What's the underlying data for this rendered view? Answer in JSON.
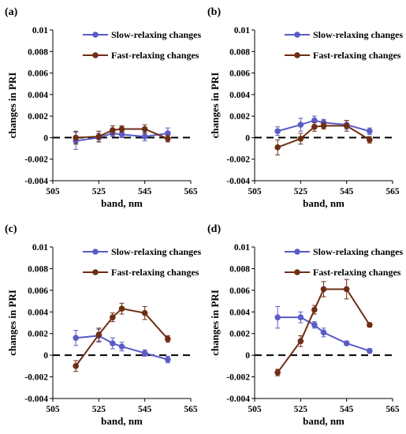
{
  "chart_data": [
    {
      "panel": "(a)",
      "type": "line",
      "xlabel": "band, nm",
      "ylabel": "changes in PRI",
      "xlim": [
        505,
        565
      ],
      "ylim": [
        -0.004,
        0.01
      ],
      "xticks": [
        "505",
        "525",
        "545",
        "565"
      ],
      "yticks": [
        "-0.004",
        "-0.002",
        "0",
        "0.002",
        "0.004",
        "0.006",
        "0.008",
        "0.01"
      ],
      "reference_line": 0,
      "grid": false,
      "legend_position": "top-right",
      "series": [
        {
          "name": "Slow-relaxing changes",
          "color": "#5b5bc8",
          "x": [
            515,
            525,
            531,
            535,
            545,
            555
          ],
          "y": [
            -0.0003,
            0.0,
            0.0004,
            0.0003,
            0.0001,
            0.0004
          ],
          "error": [
            0.0008,
            0.0004,
            0.0003,
            0.0003,
            0.0004,
            0.0005
          ]
        },
        {
          "name": "Fast-relaxing changes",
          "color": "#6e2e14",
          "x": [
            515,
            525,
            531,
            535,
            545,
            555
          ],
          "y": [
            0.0,
            0.0001,
            0.0007,
            0.0008,
            0.0008,
            -0.0001
          ],
          "error": [
            0.0006,
            0.0005,
            0.0004,
            0.0003,
            0.0004,
            0.0003
          ]
        }
      ]
    },
    {
      "panel": "(b)",
      "type": "line",
      "xlabel": "band, nm",
      "ylabel": "changes in PRI",
      "xlim": [
        505,
        565
      ],
      "ylim": [
        -0.004,
        0.01
      ],
      "xticks": [
        "505",
        "525",
        "545",
        "565"
      ],
      "yticks": [
        "-0.004",
        "-0.002",
        "0",
        "0.002",
        "0.004",
        "0.006",
        "0.008",
        "0.01"
      ],
      "reference_line": 0,
      "grid": false,
      "legend_position": "top-right",
      "series": [
        {
          "name": "Slow-relaxing changes",
          "color": "#5b5bc8",
          "x": [
            515,
            525,
            531,
            535,
            545,
            555
          ],
          "y": [
            0.0006,
            0.0012,
            0.0016,
            0.0014,
            0.0012,
            0.0006
          ],
          "error": [
            0.0004,
            0.0006,
            0.0004,
            0.0003,
            0.0004,
            0.0003
          ]
        },
        {
          "name": "Fast-relaxing changes",
          "color": "#6e2e14",
          "x": [
            515,
            525,
            531,
            535,
            545,
            555
          ],
          "y": [
            -0.0009,
            -0.0001,
            0.001,
            0.0011,
            0.0011,
            -0.0002
          ],
          "error": [
            0.0007,
            0.0005,
            0.0004,
            0.0003,
            0.0005,
            0.0003
          ]
        }
      ]
    },
    {
      "panel": "(c)",
      "type": "line",
      "xlabel": "band, nm",
      "ylabel": "changes in PRI",
      "xlim": [
        505,
        565
      ],
      "ylim": [
        -0.004,
        0.01
      ],
      "xticks": [
        "505",
        "525",
        "545",
        "565"
      ],
      "yticks": [
        "-0.004",
        "-0.002",
        "0",
        "0.002",
        "0.004",
        "0.006",
        "0.008",
        "0.01"
      ],
      "reference_line": 0,
      "grid": false,
      "legend_position": "top-right",
      "series": [
        {
          "name": "Slow-relaxing changes",
          "color": "#5b5bc8",
          "x": [
            515,
            525,
            531,
            535,
            545,
            555
          ],
          "y": [
            0.0016,
            0.0018,
            0.0011,
            0.0008,
            0.0002,
            -0.0004
          ],
          "error": [
            0.0007,
            0.0006,
            0.0005,
            0.0004,
            0.0003,
            0.0003
          ]
        },
        {
          "name": "Fast-relaxing changes",
          "color": "#6e2e14",
          "x": [
            515,
            525,
            531,
            535,
            545,
            555
          ],
          "y": [
            -0.001,
            0.0019,
            0.0035,
            0.0043,
            0.0039,
            0.0015
          ],
          "error": [
            0.0005,
            0.0006,
            0.0004,
            0.0005,
            0.0006,
            0.0003
          ]
        }
      ]
    },
    {
      "panel": "(d)",
      "type": "line",
      "xlabel": "band, nm",
      "ylabel": "changes in PRI",
      "xlim": [
        505,
        565
      ],
      "ylim": [
        -0.004,
        0.01
      ],
      "xticks": [
        "505",
        "525",
        "545",
        "565"
      ],
      "yticks": [
        "-0.004",
        "-0.002",
        "0",
        "0.002",
        "0.004",
        "0.006",
        "0.008",
        "0.01"
      ],
      "reference_line": 0,
      "grid": false,
      "legend_position": "top-right",
      "series": [
        {
          "name": "Slow-relaxing changes",
          "color": "#5b5bc8",
          "x": [
            515,
            525,
            531,
            535,
            545,
            555
          ],
          "y": [
            0.0035,
            0.0035,
            0.0028,
            0.0021,
            0.0011,
            0.0004
          ],
          "error": [
            0.001,
            0.0005,
            0.0003,
            0.0004,
            0.0002,
            0.0002
          ]
        },
        {
          "name": "Fast-relaxing changes",
          "color": "#6e2e14",
          "x": [
            515,
            525,
            531,
            535,
            545,
            555
          ],
          "y": [
            -0.0016,
            0.0013,
            0.0042,
            0.0061,
            0.0061,
            0.0028
          ],
          "error": [
            0.0003,
            0.0005,
            0.0004,
            0.0007,
            0.0009,
            0.0002
          ]
        }
      ]
    }
  ]
}
